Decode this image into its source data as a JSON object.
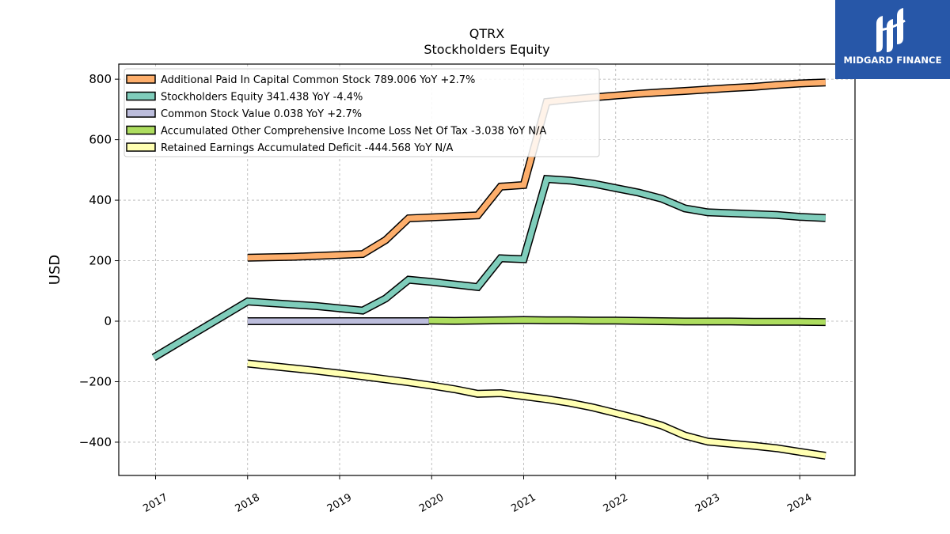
{
  "logo": {
    "name": "MIDGARD FINANCE",
    "mark_icon": "midgard-m-logo-icon",
    "bg_color": "#2757a8"
  },
  "chart_data": {
    "type": "line",
    "title": "QTRX",
    "subtitle": "Stockholders  Equity",
    "xlabel": "",
    "ylabel": "USD",
    "xlim": [
      2016.6,
      2024.6
    ],
    "ylim": [
      -510,
      850
    ],
    "x_ticks": [
      2017,
      2018,
      2019,
      2020,
      2021,
      2022,
      2023,
      2024
    ],
    "y_ticks": [
      -400,
      -200,
      0,
      200,
      400,
      600,
      800
    ],
    "y_tick_labels": [
      "−400",
      "−200",
      "0",
      "200",
      "400",
      "600",
      "800"
    ],
    "grid": true,
    "legend_position": "top-left",
    "series": [
      {
        "name": "Additional Paid In Capital Common Stock",
        "legend": "Additional Paid In Capital Common Stock  789.006 YoY +2.7%",
        "color": "#fdae6b",
        "x": [
          2018.0,
          2018.5,
          2019.25,
          2019.5,
          2019.75,
          2020.5,
          2020.75,
          2021.0,
          2021.25,
          2021.5,
          2021.75,
          2022.0,
          2022.25,
          2022.5,
          2022.75,
          2023.0,
          2023.25,
          2023.5,
          2023.75,
          2024.0,
          2024.28
        ],
        "y": [
          210,
          213,
          222,
          268,
          340,
          350,
          445,
          450,
          725,
          733,
          740,
          746,
          752,
          757,
          761,
          766,
          771,
          775,
          781,
          786,
          789
        ]
      },
      {
        "name": "Stockholders Equity",
        "legend": "Stockholders Equity  341.438 YoY -4.4%",
        "color": "#7fcdbb",
        "x": [
          2016.98,
          2018.0,
          2018.5,
          2018.75,
          2019.25,
          2019.5,
          2019.75,
          2020.0,
          2020.5,
          2020.75,
          2021.0,
          2021.25,
          2021.5,
          2021.75,
          2022.0,
          2022.25,
          2022.5,
          2022.75,
          2023.0,
          2023.25,
          2023.5,
          2023.75,
          2024.0,
          2024.28
        ],
        "y": [
          -120,
          65,
          55,
          50,
          35,
          75,
          137,
          130,
          113,
          208,
          205,
          470,
          465,
          455,
          440,
          425,
          405,
          373,
          360,
          357,
          354,
          351,
          345,
          341
        ]
      },
      {
        "name": "Common Stock Value",
        "legend": "Common Stock Value  0.038 YoY +2.7%",
        "color": "#bcbddc",
        "x": [
          2018.0,
          2019.97
        ],
        "y": [
          0.03,
          0.03
        ]
      },
      {
        "name": "Accumulated Other Comprehensive Income Loss Net Of Tax",
        "legend": "Accumulated Other Comprehensive Income Loss Net Of Tax  -3.038 YoY N/A",
        "color": "#addd5f",
        "x": [
          2019.97,
          2020.25,
          2020.5,
          2020.75,
          2021.0,
          2021.25,
          2021.5,
          2021.75,
          2022.0,
          2022.25,
          2022.5,
          2022.75,
          2023.0,
          2023.25,
          2023.5,
          2023.75,
          2024.0,
          2024.28
        ],
        "y": [
          2,
          1,
          2,
          3,
          4,
          3,
          3,
          2,
          2,
          1,
          0,
          -1,
          -1,
          -1,
          -2,
          -2,
          -2,
          -3
        ]
      },
      {
        "name": "Retained Earnings Accumulated Deficit",
        "legend": "Retained Earnings Accumulated Deficit  -444.568 YoY N/A",
        "color": "#ffffb2",
        "x": [
          2018.0,
          2018.25,
          2018.5,
          2018.75,
          2019.0,
          2019.25,
          2019.5,
          2019.75,
          2020.0,
          2020.25,
          2020.5,
          2020.75,
          2021.0,
          2021.25,
          2021.5,
          2021.75,
          2022.0,
          2022.25,
          2022.5,
          2022.75,
          2023.0,
          2023.25,
          2023.5,
          2023.75,
          2024.0,
          2024.28
        ],
        "y": [
          -140,
          -148,
          -156,
          -164,
          -173,
          -182,
          -192,
          -202,
          -213,
          -225,
          -240,
          -238,
          -248,
          -258,
          -270,
          -285,
          -304,
          -323,
          -345,
          -378,
          -398,
          -405,
          -412,
          -420,
          -432,
          -445
        ]
      }
    ]
  }
}
